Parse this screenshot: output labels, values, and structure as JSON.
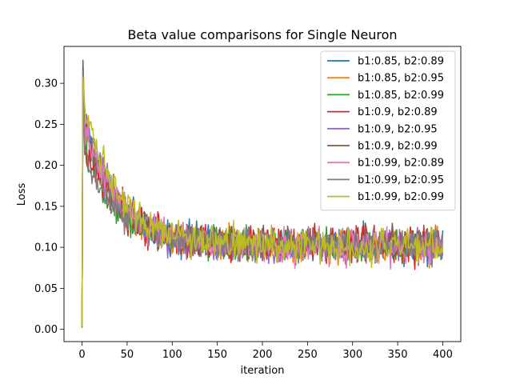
{
  "chart_data": {
    "type": "line",
    "title": "Beta value comparisons for Single Neuron",
    "xlabel": "iteration",
    "ylabel": "Loss",
    "xlim": [
      -20,
      420
    ],
    "ylim": [
      -0.015,
      0.345
    ],
    "xticks": [
      0,
      50,
      100,
      150,
      200,
      250,
      300,
      350,
      400
    ],
    "yticks": [
      0.0,
      0.05,
      0.1,
      0.15,
      0.2,
      0.25,
      0.3
    ],
    "grid": false,
    "legend_position": "top-right",
    "series": [
      {
        "name": "b1:0.85, b2:0.89",
        "color": "#1f77b4",
        "start": 0.002,
        "peak": 0.328,
        "peak_at": 1,
        "after_peak": 0.26,
        "tau": 38,
        "end": 0.103,
        "noise": 0.01
      },
      {
        "name": "b1:0.85, b2:0.95",
        "color": "#ff7f0e",
        "start": 0.003,
        "peak": 0.305,
        "peak_at": 1,
        "after_peak": 0.24,
        "tau": 37,
        "end": 0.101,
        "noise": 0.01
      },
      {
        "name": "b1:0.85, b2:0.99",
        "color": "#2ca02c",
        "start": 0.002,
        "peak": 0.3,
        "peak_at": 1,
        "after_peak": 0.23,
        "tau": 38,
        "end": 0.102,
        "noise": 0.01
      },
      {
        "name": "b1:0.9, b2:0.89",
        "color": "#d62728",
        "start": 0.004,
        "peak": 0.32,
        "peak_at": 1,
        "after_peak": 0.225,
        "tau": 40,
        "end": 0.103,
        "noise": 0.011
      },
      {
        "name": "b1:0.9, b2:0.95",
        "color": "#9467bd",
        "start": 0.003,
        "peak": 0.31,
        "peak_at": 1,
        "after_peak": 0.27,
        "tau": 35,
        "end": 0.102,
        "noise": 0.01
      },
      {
        "name": "b1:0.9, b2:0.99",
        "color": "#8c564b",
        "start": 0.003,
        "peak": 0.322,
        "peak_at": 1,
        "after_peak": 0.255,
        "tau": 38,
        "end": 0.103,
        "noise": 0.01
      },
      {
        "name": "b1:0.99, b2:0.89",
        "color": "#e377c2",
        "start": 0.004,
        "peak": 0.305,
        "peak_at": 1,
        "after_peak": 0.25,
        "tau": 40,
        "end": 0.1,
        "noise": 0.01
      },
      {
        "name": "b1:0.99, b2:0.95",
        "color": "#7f7f7f",
        "start": 0.003,
        "peak": 0.315,
        "peak_at": 1,
        "after_peak": 0.22,
        "tau": 36,
        "end": 0.104,
        "noise": 0.01
      },
      {
        "name": "b1:0.99, b2:0.99",
        "color": "#bcbd22",
        "start": 0.003,
        "peak": 0.308,
        "peak_at": 1,
        "after_peak": 0.28,
        "tau": 40,
        "end": 0.102,
        "noise": 0.01
      }
    ]
  }
}
